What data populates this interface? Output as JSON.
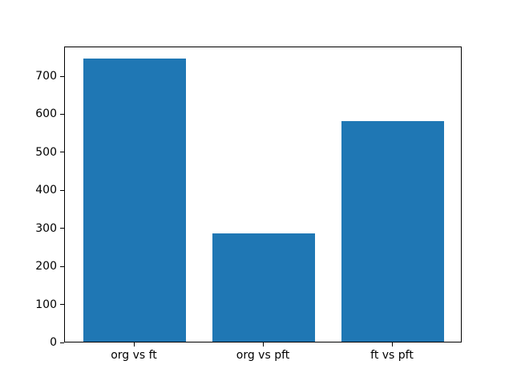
{
  "figure": {
    "background": "#ffffff",
    "title": ""
  },
  "chart_data": {
    "type": "bar",
    "categories": [
      "org vs ft",
      "org vs pft",
      "ft vs pft"
    ],
    "values": [
      744,
      284,
      580
    ],
    "title": "",
    "xlabel": "",
    "ylabel": "",
    "ylim": [
      0,
      778
    ],
    "xlim": [
      -0.54,
      2.54
    ],
    "yticks": [
      0,
      100,
      200,
      300,
      400,
      500,
      600,
      700
    ],
    "bar_color": "#1f77b4",
    "bar_width_fraction": 0.8,
    "grid": false,
    "legend_position": "none",
    "axis_color": "#000000",
    "tick_label_color": "#000000"
  }
}
